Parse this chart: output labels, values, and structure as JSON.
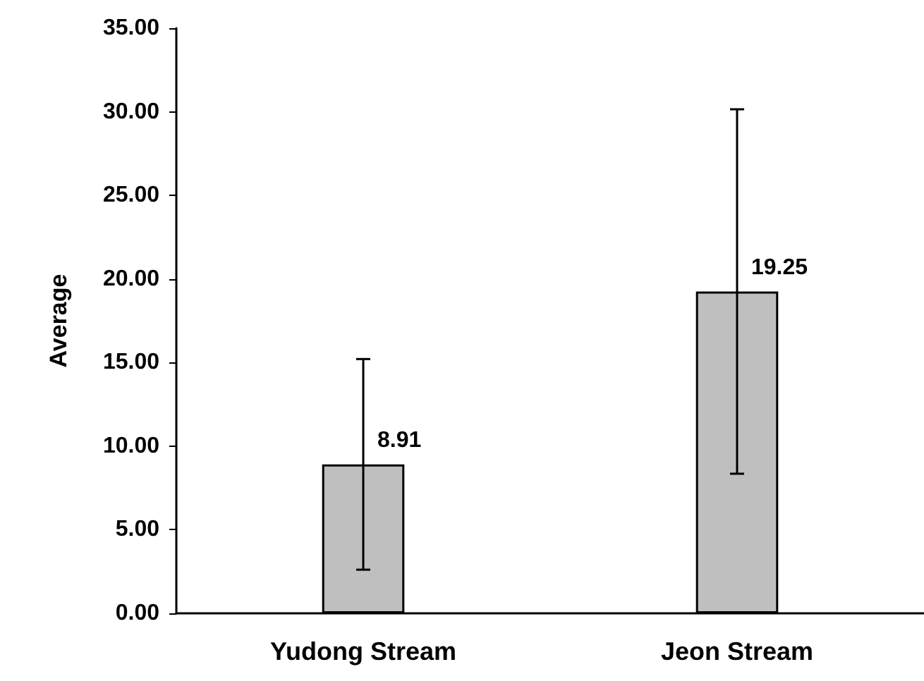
{
  "chart_data": {
    "type": "bar",
    "ylabel": "Average",
    "categories": [
      "Yudong Stream",
      "Jeon Stream"
    ],
    "series": [
      {
        "color": "#bfbfbf",
        "values": [
          8.91,
          19.25
        ],
        "errors": [
          6.3,
          10.9
        ]
      }
    ],
    "data_labels": true,
    "ylim": [
      0,
      35
    ],
    "yticks": [
      {
        "value": 0,
        "label": "0.00"
      },
      {
        "value": 5,
        "label": "5.00"
      },
      {
        "value": 10,
        "label": "10.00"
      },
      {
        "value": 15,
        "label": "15.00"
      },
      {
        "value": 20,
        "label": "20.00"
      },
      {
        "value": 25,
        "label": "25.00"
      },
      {
        "value": 30,
        "label": "30.00"
      },
      {
        "value": 35,
        "label": "35.00"
      }
    ],
    "grid": false
  }
}
